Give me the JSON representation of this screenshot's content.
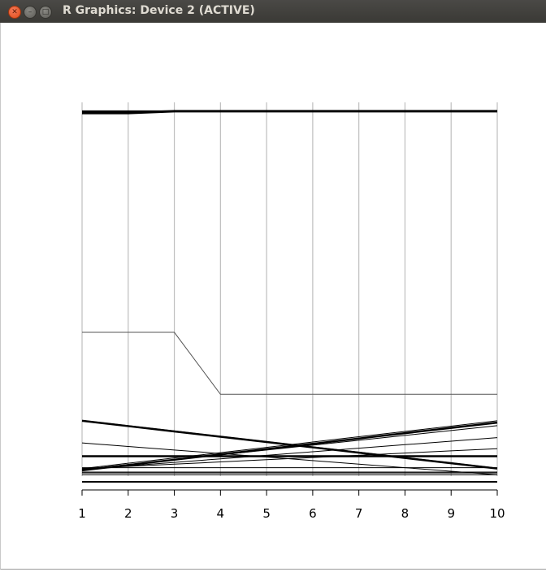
{
  "window": {
    "title": "R Graphics: Device 2 (ACTIVE)",
    "controls": [
      "close-icon",
      "minimize-icon",
      "maximize-icon"
    ]
  },
  "chart_data": {
    "type": "line",
    "title": "",
    "xlabel": "",
    "ylabel": "",
    "x": [
      1,
      2,
      3,
      4,
      5,
      6,
      7,
      8,
      9,
      10
    ],
    "xlim": [
      1,
      10
    ],
    "ylim": [
      -1,
      43
    ],
    "x_ticks": [
      "1",
      "2",
      "3",
      "4",
      "5",
      "6",
      "7",
      "8",
      "9",
      "10"
    ],
    "grid": "vertical",
    "y_axis_shown": false,
    "legend": "none",
    "colors": {
      "lines": "#000000",
      "grid": "#bebebe",
      "special_line": "#555555"
    },
    "series": [
      {
        "values": [
          41.8,
          41.8,
          42,
          42,
          42,
          42,
          42,
          42,
          42,
          42
        ],
        "width": 3
      },
      {
        "values": [
          42,
          42,
          42,
          42,
          42,
          42,
          42,
          42,
          42,
          42
        ],
        "width": 2
      },
      {
        "values": [
          17,
          17,
          17,
          10,
          10,
          10,
          10,
          10,
          10,
          10
        ],
        "width": 1,
        "color": "#555555"
      },
      {
        "values": [
          7,
          6.4,
          5.8,
          5.2,
          4.6,
          4,
          3.4,
          2.8,
          2.2,
          1.6
        ],
        "width": 2.5
      },
      {
        "values": [
          7.05,
          6.45,
          5.85,
          5.25,
          4.65,
          4.05,
          3.45,
          2.85,
          2.25,
          1.65
        ],
        "width": 1
      },
      {
        "values": [
          1.4,
          2,
          2.6,
          3.2,
          3.8,
          4.4,
          5,
          5.6,
          6.2,
          6.8
        ],
        "width": 2.5
      },
      {
        "values": [
          1.6,
          2.2,
          2.8,
          3.4,
          4,
          4.6,
          5.2,
          5.8,
          6.4,
          7
        ],
        "width": 1
      },
      {
        "values": [
          1.5,
          2.05,
          2.6,
          3.15,
          3.7,
          4.25,
          4.8,
          5.35,
          5.9,
          6.45
        ],
        "width": 1
      },
      {
        "values": [
          4.5,
          4.1,
          3.7,
          3.3,
          2.9,
          2.5,
          2.1,
          1.7,
          1.3,
          0.9
        ],
        "width": 1
      },
      {
        "values": [
          1.5,
          1.9,
          2.3,
          2.7,
          3.1,
          3.5,
          3.9,
          4.3,
          4.7,
          5.1
        ],
        "width": 1
      },
      {
        "values": [
          1.6,
          1.85,
          2.1,
          2.35,
          2.6,
          2.85,
          3.1,
          3.35,
          3.6,
          3.85
        ],
        "width": 1
      },
      {
        "values": [
          3,
          3,
          3,
          3,
          3,
          3,
          3,
          3,
          3,
          3
        ],
        "width": 2.5
      },
      {
        "values": [
          1.7,
          1.7,
          1.7,
          1.7,
          1.7,
          1.7,
          1.7,
          1.7,
          1.7,
          1.7
        ],
        "width": 1
      },
      {
        "values": [
          1.1,
          1.1,
          1.1,
          1.1,
          1.1,
          1.1,
          1.1,
          1.1,
          1.1,
          1.1
        ],
        "width": 1
      },
      {
        "values": [
          1.2,
          1.2,
          1.2,
          1.2,
          1.2,
          1.2,
          1.2,
          1.2,
          1.2,
          1.2
        ],
        "width": 1
      },
      {
        "values": [
          0.9,
          0.9,
          0.9,
          0.9,
          0.9,
          0.9,
          0.9,
          0.9,
          0.9,
          0.9
        ],
        "width": 1
      },
      {
        "values": [
          0.1,
          0.1,
          0.1,
          0.1,
          0.1,
          0.1,
          0.1,
          0.1,
          0.1,
          0.1
        ],
        "width": 2
      }
    ]
  }
}
